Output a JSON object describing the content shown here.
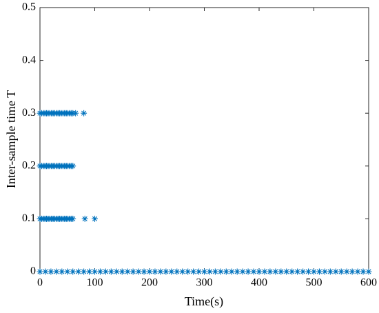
{
  "chart_data": {
    "type": "scatter",
    "xlabel": "Time(s)",
    "ylabel": "Inter-sample time T",
    "marker": "*",
    "series": [
      {
        "color": "#0072bd",
        "x": [
          0,
          3,
          6,
          9,
          12,
          15,
          18,
          21,
          24,
          27,
          30,
          33,
          36,
          39,
          42,
          45,
          48,
          51,
          54,
          57,
          60,
          65,
          80
        ],
        "values": [
          0.3,
          0.3,
          0.3,
          0.3,
          0.3,
          0.3,
          0.3,
          0.3,
          0.3,
          0.3,
          0.3,
          0.3,
          0.3,
          0.3,
          0.3,
          0.3,
          0.3,
          0.3,
          0.3,
          0.3,
          0.3,
          0.3,
          0.3
        ]
      },
      {
        "color": "#0072bd",
        "x": [
          0,
          3,
          6,
          9,
          12,
          15,
          18,
          21,
          24,
          27,
          30,
          33,
          36,
          39,
          42,
          45,
          48,
          51,
          54,
          57,
          60
        ],
        "values": [
          0.2,
          0.2,
          0.2,
          0.2,
          0.2,
          0.2,
          0.2,
          0.2,
          0.2,
          0.2,
          0.2,
          0.2,
          0.2,
          0.2,
          0.2,
          0.2,
          0.2,
          0.2,
          0.2,
          0.2,
          0.2
        ]
      },
      {
        "color": "#0072bd",
        "x": [
          0,
          3,
          6,
          9,
          12,
          15,
          18,
          21,
          24,
          27,
          30,
          33,
          36,
          39,
          42,
          45,
          48,
          51,
          54,
          57,
          60,
          82,
          100
        ],
        "values": [
          0.1,
          0.1,
          0.1,
          0.1,
          0.1,
          0.1,
          0.1,
          0.1,
          0.1,
          0.1,
          0.1,
          0.1,
          0.1,
          0.1,
          0.1,
          0.1,
          0.1,
          0.1,
          0.1,
          0.1,
          0.1,
          0.1,
          0.1
        ]
      },
      {
        "color": "#0072bd",
        "x": [
          0,
          10,
          20,
          30,
          40,
          50,
          60,
          70,
          80,
          90,
          100,
          110,
          120,
          130,
          140,
          150,
          160,
          170,
          180,
          190,
          200,
          210,
          220,
          230,
          240,
          250,
          260,
          270,
          280,
          290,
          300,
          310,
          320,
          330,
          340,
          350,
          360,
          370,
          380,
          390,
          400,
          410,
          420,
          430,
          440,
          450,
          460,
          470,
          480,
          490,
          500,
          510,
          520,
          530,
          540,
          550,
          560,
          570,
          580,
          590,
          600
        ],
        "values": [
          0,
          0,
          0,
          0,
          0,
          0,
          0,
          0,
          0,
          0,
          0,
          0,
          0,
          0,
          0,
          0,
          0,
          0,
          0,
          0,
          0,
          0,
          0,
          0,
          0,
          0,
          0,
          0,
          0,
          0,
          0,
          0,
          0,
          0,
          0,
          0,
          0,
          0,
          0,
          0,
          0,
          0,
          0,
          0,
          0,
          0,
          0,
          0,
          0,
          0,
          0,
          0,
          0,
          0,
          0,
          0,
          0,
          0,
          0,
          0,
          0
        ]
      }
    ],
    "xlim": [
      0,
      600
    ],
    "xticks": [
      0,
      100,
      200,
      300,
      400,
      500,
      600
    ],
    "ylim": [
      0,
      0.5
    ],
    "yticks": [
      0,
      0.1,
      0.2,
      0.3,
      0.4,
      0.5
    ],
    "grid": false
  }
}
